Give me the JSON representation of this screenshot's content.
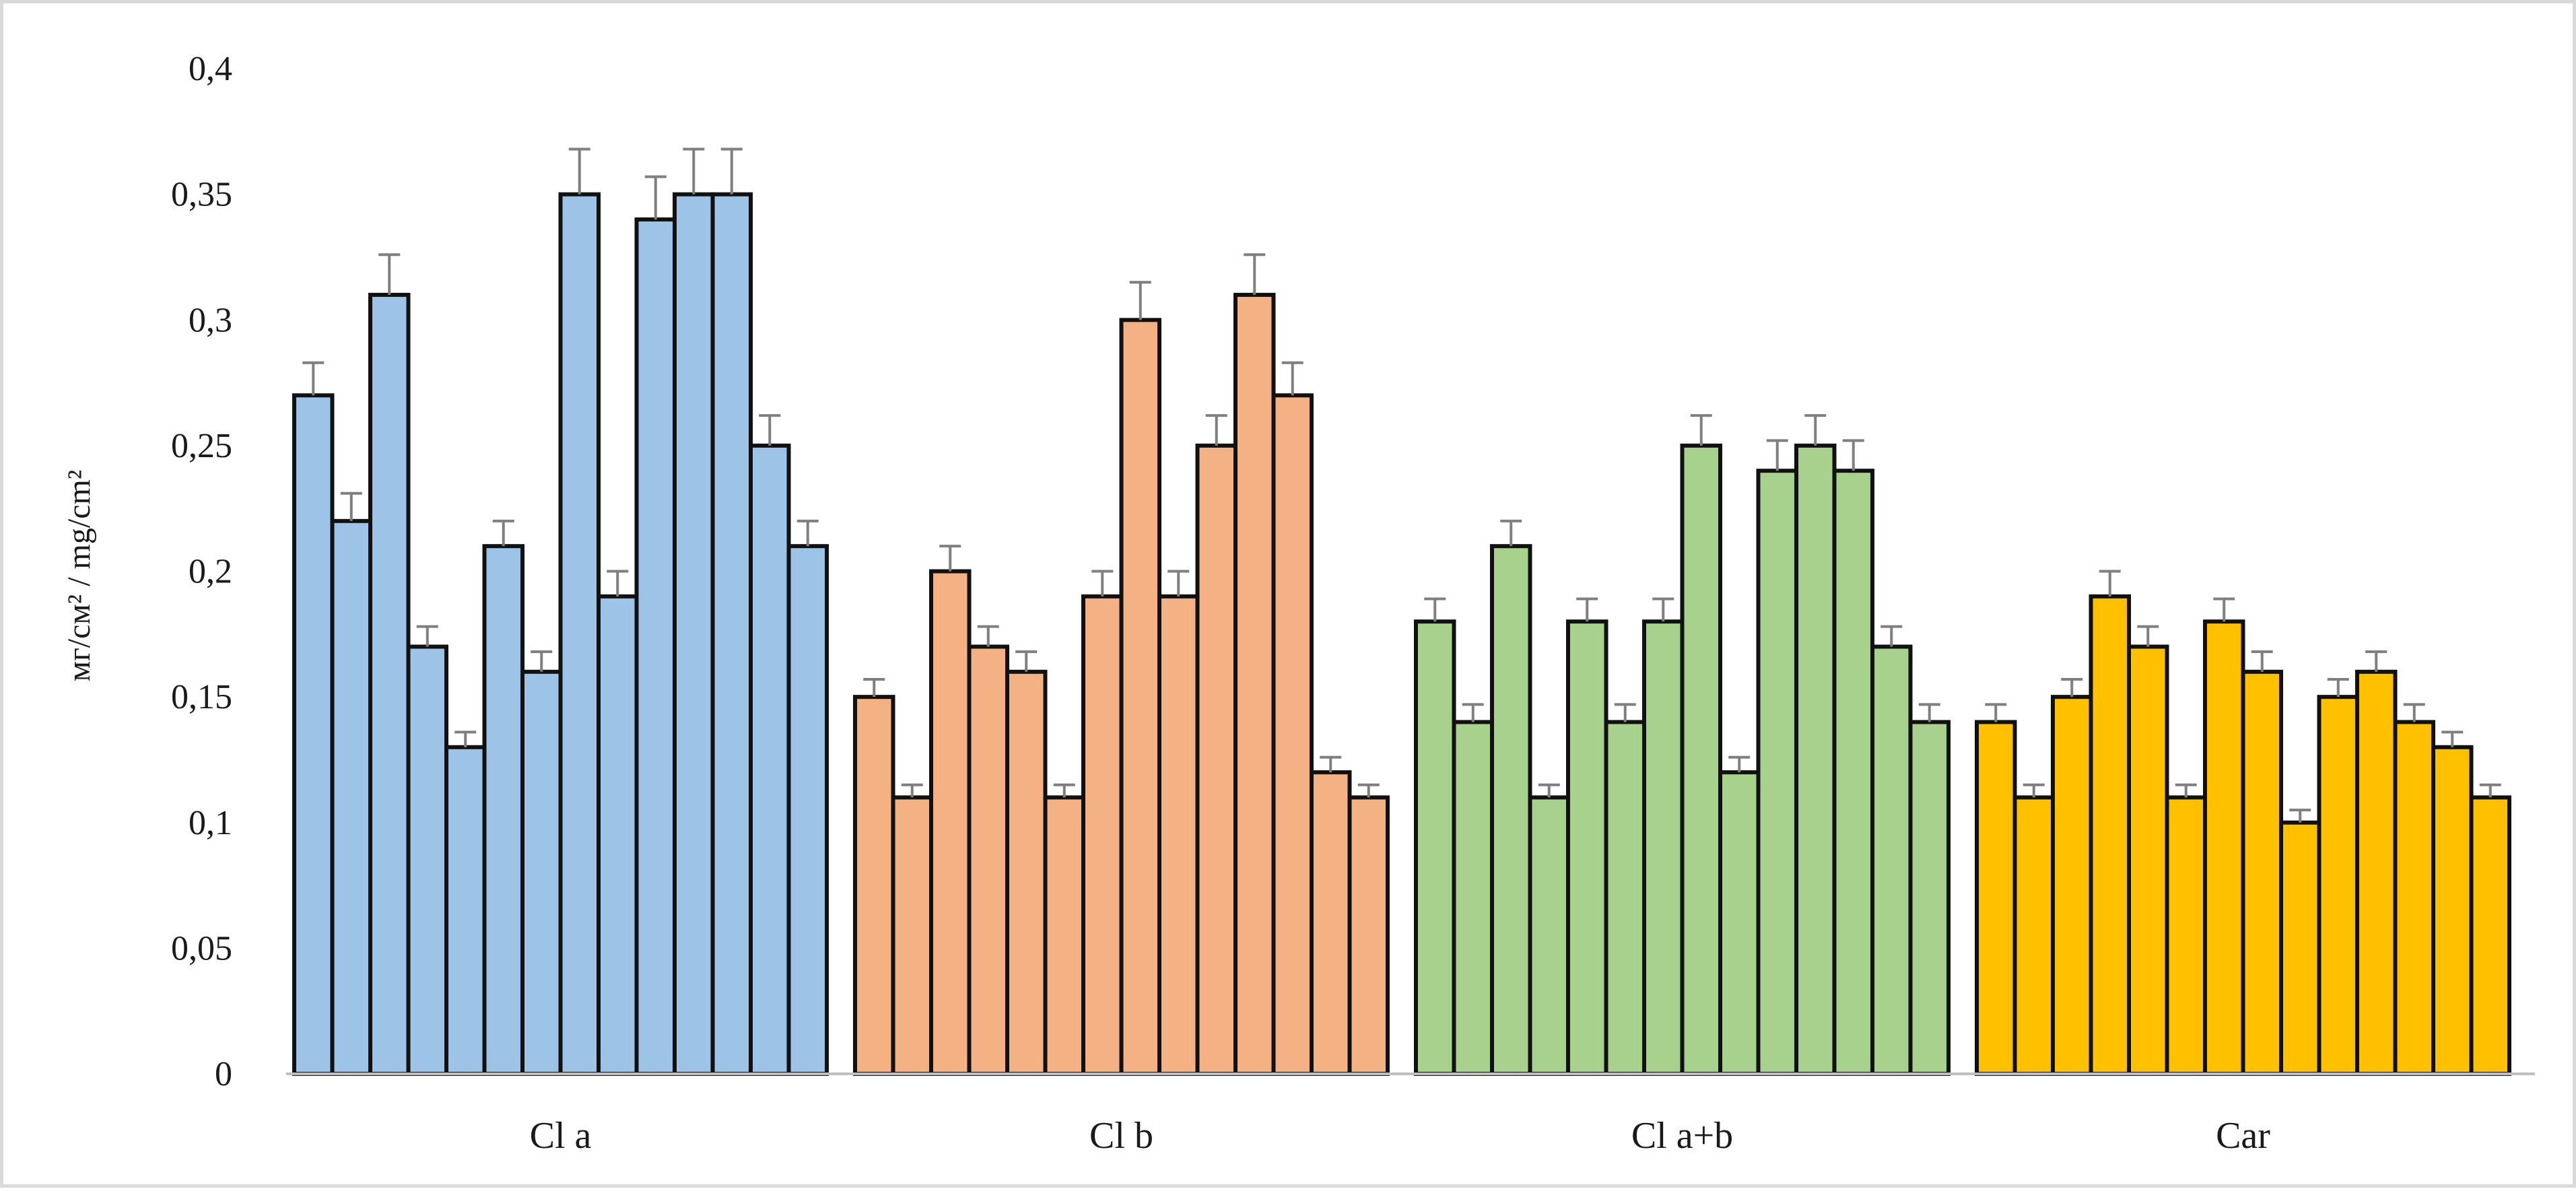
{
  "chart_data": {
    "type": "bar",
    "title": "",
    "xlabel": "",
    "ylabel": "мг/см² / mg/cm²",
    "ylim": [
      0,
      0.4
    ],
    "yticks": [
      0,
      0.05,
      0.1,
      0.15,
      0.2,
      0.25,
      0.3,
      0.35,
      0.4
    ],
    "ytick_labels": [
      "0",
      "0,05",
      "0,1",
      "0,15",
      "0,2",
      "0,25",
      "0,3",
      "0,35",
      "0,4"
    ],
    "grid": false,
    "legend": "none",
    "categories": [
      "Cl a",
      "Cl b",
      "Cl a+b",
      "Car"
    ],
    "series_colors": [
      "#9dc3e6",
      "#f4b183",
      "#a9d18e",
      "#ffc000"
    ],
    "groups": [
      {
        "name": "Cl a",
        "values": [
          0.27,
          0.22,
          0.31,
          0.17,
          0.13,
          0.21,
          0.16,
          0.35,
          0.19,
          0.34,
          0.35,
          0.35,
          0.25,
          0.21
        ],
        "errors": [
          0.013,
          0.011,
          0.016,
          0.008,
          0.006,
          0.01,
          0.008,
          0.018,
          0.01,
          0.017,
          0.018,
          0.018,
          0.012,
          0.01
        ]
      },
      {
        "name": "Cl b",
        "values": [
          0.15,
          0.11,
          0.2,
          0.17,
          0.16,
          0.11,
          0.19,
          0.3,
          0.19,
          0.25,
          0.31,
          0.27,
          0.12,
          0.11
        ],
        "errors": [
          0.007,
          0.005,
          0.01,
          0.008,
          0.008,
          0.005,
          0.01,
          0.015,
          0.01,
          0.012,
          0.016,
          0.013,
          0.006,
          0.005
        ]
      },
      {
        "name": "Cl a+b",
        "values": [
          0.18,
          0.14,
          0.21,
          0.11,
          0.18,
          0.14,
          0.18,
          0.25,
          0.12,
          0.24,
          0.25,
          0.24,
          0.17,
          0.14
        ],
        "errors": [
          0.009,
          0.007,
          0.01,
          0.005,
          0.009,
          0.007,
          0.009,
          0.012,
          0.006,
          0.012,
          0.012,
          0.012,
          0.008,
          0.007
        ]
      },
      {
        "name": "Car",
        "values": [
          0.14,
          0.11,
          0.15,
          0.19,
          0.17,
          0.11,
          0.18,
          0.16,
          0.1,
          0.15,
          0.16,
          0.14,
          0.13,
          0.11
        ],
        "errors": [
          0.007,
          0.005,
          0.007,
          0.01,
          0.008,
          0.005,
          0.009,
          0.008,
          0.005,
          0.007,
          0.008,
          0.007,
          0.006,
          0.005
        ]
      }
    ]
  }
}
